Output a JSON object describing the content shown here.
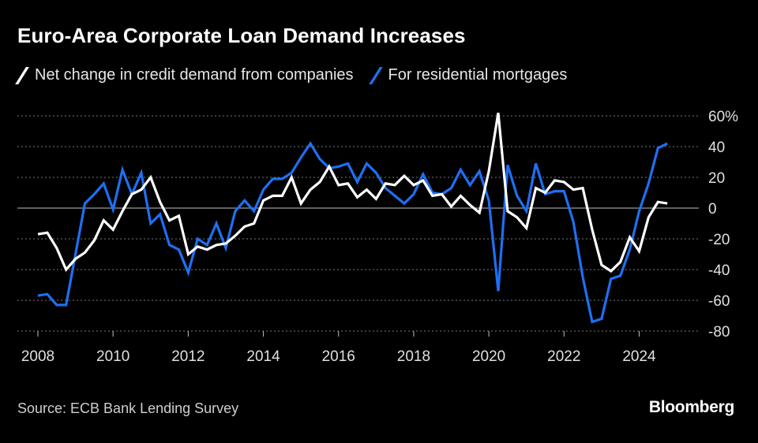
{
  "header": {
    "title": "Euro-Area Corporate Loan Demand Increases"
  },
  "legend": {
    "companies_label": "Net change in credit demand from companies",
    "mortgages_label": "For residential mortgages"
  },
  "colors": {
    "background": "#000000",
    "companies": "#ffffff",
    "mortgages": "#1f6ff2",
    "grid": "#7a7a7a",
    "tick_text": "#e0e0e0"
  },
  "footer": {
    "source": "Source: ECB Bank Lending Survey",
    "brand": "Bloomberg"
  },
  "chart_data": {
    "type": "line",
    "title": "Euro-Area Corporate Loan Demand Increases",
    "xlabel": "",
    "ylabel": "",
    "xlim": [
      2008.0,
      2025.5
    ],
    "ylim": [
      -80,
      60
    ],
    "x_ticks": [
      2008,
      2010,
      2012,
      2014,
      2016,
      2018,
      2020,
      2022,
      2024
    ],
    "x_tick_labels": [
      "2008",
      "2010",
      "2012",
      "2014",
      "2016",
      "2018",
      "2020",
      "2022",
      "2024"
    ],
    "y_ticks": [
      60,
      40,
      20,
      0,
      -20,
      -40,
      -60,
      -80
    ],
    "y_tick_labels": [
      "60%",
      "40",
      "20",
      "0",
      "-20",
      "-40",
      "-60",
      "-80"
    ],
    "grid": true,
    "legend_position": "top-left",
    "x": [
      2008.0,
      2008.25,
      2008.5,
      2008.75,
      2009.0,
      2009.25,
      2009.5,
      2009.75,
      2010.0,
      2010.25,
      2010.5,
      2010.75,
      2011.0,
      2011.25,
      2011.5,
      2011.75,
      2012.0,
      2012.25,
      2012.5,
      2012.75,
      2013.0,
      2013.25,
      2013.5,
      2013.75,
      2014.0,
      2014.25,
      2014.5,
      2014.75,
      2015.0,
      2015.25,
      2015.5,
      2015.75,
      2016.0,
      2016.25,
      2016.5,
      2016.75,
      2017.0,
      2017.25,
      2017.5,
      2017.75,
      2018.0,
      2018.25,
      2018.5,
      2018.75,
      2019.0,
      2019.25,
      2019.5,
      2019.75,
      2020.0,
      2020.25,
      2020.5,
      2020.75,
      2021.0,
      2021.25,
      2021.5,
      2021.75,
      2022.0,
      2022.25,
      2022.5,
      2022.75,
      2023.0,
      2023.25,
      2023.5,
      2023.75,
      2024.0,
      2024.25,
      2024.5,
      2024.75
    ],
    "series": [
      {
        "name": "Net change in credit demand from companies",
        "color": "#ffffff",
        "values": [
          -17,
          -16,
          -26,
          -40,
          -33,
          -29,
          -21,
          -8,
          -14,
          -2,
          9,
          12,
          20,
          4,
          -8,
          -5,
          -30,
          -25,
          -27,
          -24,
          -23,
          -18,
          -12,
          -10,
          5,
          8,
          8,
          20,
          3,
          12,
          17,
          27,
          15,
          16,
          7,
          12,
          6,
          16,
          15,
          21,
          15,
          18,
          8,
          9,
          1,
          8,
          2,
          -3,
          24,
          62,
          -2,
          -6,
          -13,
          13,
          10,
          18,
          17,
          12,
          13,
          -14,
          -37,
          -41,
          -35,
          -19,
          -28,
          -6,
          4,
          3
        ]
      },
      {
        "name": "For residential mortgages",
        "color": "#1f6ff2",
        "values": [
          -57,
          -56,
          -63,
          -63,
          -30,
          3,
          9,
          16,
          -1,
          25,
          9,
          23,
          -10,
          -4,
          -24,
          -27,
          -42,
          -20,
          -24,
          -10,
          -26,
          -2,
          5,
          -2,
          12,
          19,
          19,
          23,
          33,
          42,
          32,
          26,
          27,
          29,
          17,
          29,
          23,
          13,
          8,
          3,
          9,
          22,
          10,
          9,
          13,
          25,
          15,
          24,
          5,
          -54,
          28,
          8,
          -2,
          29,
          9,
          11,
          11,
          -9,
          -45,
          -74,
          -72,
          -46,
          -44,
          -27,
          -2,
          16,
          39,
          42
        ]
      }
    ]
  }
}
